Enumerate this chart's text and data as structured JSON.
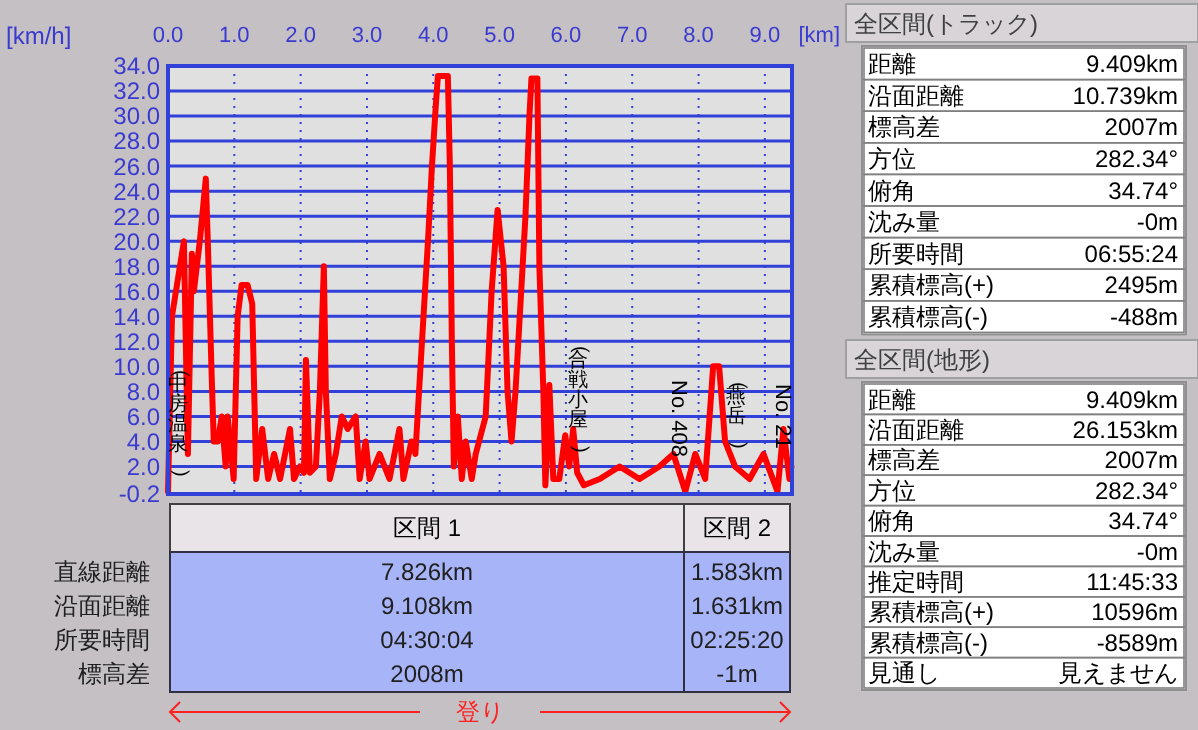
{
  "chart_data": [
    {
      "type": "line",
      "xlabel": "[km]",
      "ylabel": "[km/h]",
      "xlim": [
        0,
        9.409
      ],
      "ylim": [
        -0.2,
        34.0
      ],
      "xticks": [
        {
          "value": 0,
          "label": "0.0"
        },
        {
          "value": 1,
          "label": "1.0"
        },
        {
          "value": 2,
          "label": "2.0"
        },
        {
          "value": 3,
          "label": "3.0"
        },
        {
          "value": 4,
          "label": "4.0"
        },
        {
          "value": 5,
          "label": "5.0"
        },
        {
          "value": 6,
          "label": "6.0"
        },
        {
          "value": 7,
          "label": "7.0"
        },
        {
          "value": 8,
          "label": "8.0"
        },
        {
          "value": 9,
          "label": "9.0"
        }
      ],
      "yticks": [
        {
          "value": -0.2,
          "label": "-0.2"
        },
        {
          "value": 2,
          "label": "2.0"
        },
        {
          "value": 4,
          "label": "4.0"
        },
        {
          "value": 6,
          "label": "6.0"
        },
        {
          "value": 8,
          "label": "8.0"
        },
        {
          "value": 10,
          "label": "10.0"
        },
        {
          "value": 12,
          "label": "12.0"
        },
        {
          "value": 14,
          "label": "14.0"
        },
        {
          "value": 16,
          "label": "16.0"
        },
        {
          "value": 18,
          "label": "18.0"
        },
        {
          "value": 20,
          "label": "20.0"
        },
        {
          "value": 22,
          "label": "22.0"
        },
        {
          "value": 24,
          "label": "24.0"
        },
        {
          "value": 26,
          "label": "26.0"
        },
        {
          "value": 28,
          "label": "28.0"
        },
        {
          "value": 30,
          "label": "30.0"
        },
        {
          "value": 32,
          "label": "32.0"
        },
        {
          "value": 34,
          "label": "34.0"
        }
      ],
      "grid": true,
      "annotations": [
        "(中房温泉)",
        "(合戦小屋)",
        "No. 408",
        "(燕岳)",
        "No. 21"
      ],
      "series": [
        {
          "color": "#ff0000",
          "x": [
            0.0,
            0.06,
            0.24,
            0.3,
            0.36,
            0.39,
            0.48,
            0.57,
            0.6,
            0.66,
            0.69,
            0.75,
            0.81,
            0.87,
            0.9,
            0.99,
            1.05,
            1.11,
            1.2,
            1.27,
            1.3,
            1.33,
            1.42,
            1.51,
            1.6,
            1.69,
            1.84,
            1.9,
            1.99,
            2.05,
            2.08,
            2.14,
            2.23,
            2.29,
            2.35,
            2.38,
            2.44,
            2.53,
            2.62,
            2.71,
            2.83,
            2.89,
            2.98,
            3.04,
            3.19,
            3.34,
            3.49,
            3.55,
            3.67,
            3.73,
            3.83,
            3.92,
            3.98,
            4.04,
            4.07,
            4.22,
            4.25,
            4.28,
            4.31,
            4.37,
            4.43,
            4.49,
            4.58,
            4.64,
            4.79,
            4.88,
            4.97,
            5.06,
            5.12,
            5.18,
            5.24,
            5.39,
            5.45,
            5.48,
            5.57,
            5.6,
            5.66,
            5.69,
            5.72,
            5.75,
            5.81,
            5.9,
            5.99,
            6.05,
            6.11,
            6.17,
            6.27,
            6.51,
            6.81,
            7.11,
            7.41,
            7.62,
            7.8,
            7.95,
            8.1,
            8.22,
            8.31,
            8.4,
            8.55,
            8.77,
            8.98,
            9.19,
            9.28,
            9.37,
            9.4
          ],
          "values": [
            0,
            14,
            20,
            3,
            19,
            16,
            20,
            25,
            20,
            9,
            4,
            4,
            6,
            2,
            6,
            1,
            14,
            16.5,
            16.5,
            15,
            8,
            1,
            5,
            1,
            3,
            1,
            5,
            1,
            2,
            1.5,
            10.5,
            1.5,
            2,
            8,
            18,
            8,
            1,
            3,
            6,
            5,
            6,
            1,
            4,
            1,
            3,
            1,
            5,
            1,
            4,
            3,
            12,
            20,
            26,
            31,
            33.2,
            33.2,
            26,
            12,
            2,
            6,
            1,
            4,
            1,
            3,
            6,
            16,
            22.5,
            18,
            8,
            4,
            8,
            22,
            30,
            33,
            33,
            18,
            8,
            0.5,
            4,
            8.5,
            1,
            1,
            4.5,
            2,
            5,
            1.5,
            0.5,
            1,
            2,
            1,
            2,
            3,
            0,
            3,
            1,
            10,
            10,
            4,
            2,
            1,
            3,
            0,
            5,
            1,
            2
          ]
        }
      ]
    },
    {
      "type": "other",
      "categories": [
        "区間 1",
        "区間 2"
      ],
      "y_categories": [
        "直線距離",
        "沿面距離",
        "所要時間",
        "標高差"
      ],
      "cell_labels": [
        [
          "7.826km",
          "1.583km"
        ],
        [
          "9.108km",
          "1.631km"
        ],
        [
          "04:30:04",
          "02:25:20"
        ],
        [
          "2008m",
          "-1m"
        ]
      ],
      "annotations": [
        "登り"
      ]
    },
    {
      "type": "other",
      "title": "全区間(トラック)",
      "y_categories": [
        "距離",
        "沿面距離",
        "標高差",
        "方位",
        "俯角",
        "沈み量",
        "所要時間",
        "累積標高(+)",
        "累積標高(-)"
      ],
      "cell_labels": [
        [
          "9.409km"
        ],
        [
          "10.739km"
        ],
        [
          "2007m"
        ],
        [
          "282.34°"
        ],
        [
          "34.74°"
        ],
        [
          "-0m"
        ],
        [
          "06:55:24"
        ],
        [
          "2495m"
        ],
        [
          "-488m"
        ]
      ]
    },
    {
      "type": "other",
      "title": "全区間(地形)",
      "y_categories": [
        "距離",
        "沿面距離",
        "標高差",
        "方位",
        "俯角",
        "沈み量",
        "推定時間",
        "累積標高(+)",
        "累積標高(-)",
        "見通し"
      ],
      "cell_labels": [
        [
          "9.409km"
        ],
        [
          "26.153km"
        ],
        [
          "2007m"
        ],
        [
          "282.34°"
        ],
        [
          "34.74°"
        ],
        [
          "-0m"
        ],
        [
          "11:45:33"
        ],
        [
          "10596m"
        ],
        [
          "-8589m"
        ],
        [
          "見えません"
        ]
      ]
    }
  ]
}
